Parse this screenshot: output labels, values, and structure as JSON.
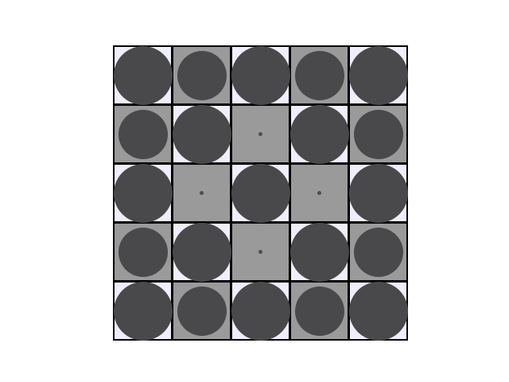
{
  "board": {
    "rows": 5,
    "cols": 5,
    "colors": {
      "grid_line": "#000000",
      "light_square": "#efeefc",
      "dark_square": "#9a9a9a",
      "piece": "#49494b",
      "marker": "#4f4f4f"
    },
    "cells": [
      [
        {
          "shade": "light",
          "content": "large-piece"
        },
        {
          "shade": "dark",
          "content": "small-piece"
        },
        {
          "shade": "light",
          "content": "large-piece"
        },
        {
          "shade": "dark",
          "content": "small-piece"
        },
        {
          "shade": "light",
          "content": "large-piece"
        }
      ],
      [
        {
          "shade": "dark",
          "content": "small-piece"
        },
        {
          "shade": "light",
          "content": "large-piece"
        },
        {
          "shade": "dark",
          "content": "dot"
        },
        {
          "shade": "light",
          "content": "large-piece"
        },
        {
          "shade": "dark",
          "content": "small-piece"
        }
      ],
      [
        {
          "shade": "light",
          "content": "large-piece"
        },
        {
          "shade": "dark",
          "content": "dot"
        },
        {
          "shade": "light",
          "content": "large-piece"
        },
        {
          "shade": "dark",
          "content": "dot"
        },
        {
          "shade": "light",
          "content": "large-piece"
        }
      ],
      [
        {
          "shade": "dark",
          "content": "small-piece"
        },
        {
          "shade": "light",
          "content": "large-piece"
        },
        {
          "shade": "dark",
          "content": "dot"
        },
        {
          "shade": "light",
          "content": "large-piece"
        },
        {
          "shade": "dark",
          "content": "small-piece"
        }
      ],
      [
        {
          "shade": "light",
          "content": "large-piece"
        },
        {
          "shade": "dark",
          "content": "small-piece"
        },
        {
          "shade": "light",
          "content": "large-piece"
        },
        {
          "shade": "dark",
          "content": "small-piece"
        },
        {
          "shade": "light",
          "content": "large-piece"
        }
      ]
    ]
  }
}
